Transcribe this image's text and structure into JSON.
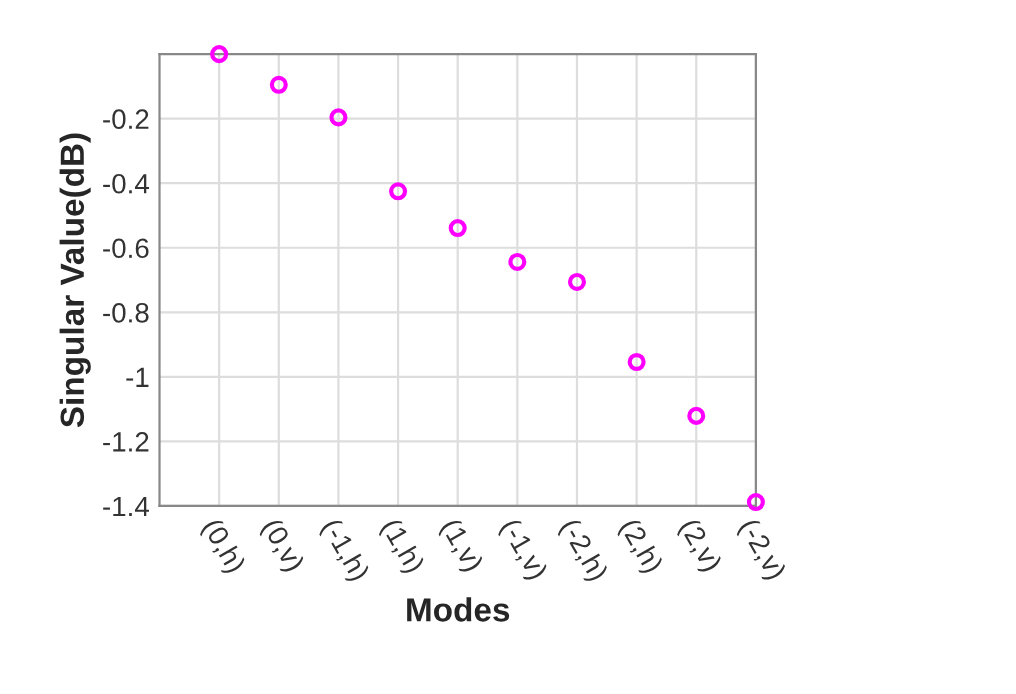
{
  "chart_data": {
    "type": "scatter",
    "xlabel": "Modes",
    "ylabel": "Singular Value(dB)",
    "categories": [
      "(0,h)",
      "(0,v)",
      "(-1,h)",
      "(1,h)",
      "(1,v)",
      "(-1,v)",
      "(-2,h)",
      "(2,h)",
      "(2,v)",
      "(-2,v)"
    ],
    "series": [
      {
        "color": "#ff00ff",
        "values": [
          0.0,
          -0.095,
          -0.196,
          -0.425,
          -0.539,
          -0.644,
          -0.706,
          -0.954,
          -1.121,
          -1.388
        ]
      }
    ],
    "ylim": [
      -1.4,
      0
    ],
    "yticks": [
      -1.4,
      -1.2,
      -1,
      -0.8,
      -0.6,
      -0.4,
      -0.2
    ],
    "grid": true,
    "marker": "circle",
    "legend": false
  }
}
